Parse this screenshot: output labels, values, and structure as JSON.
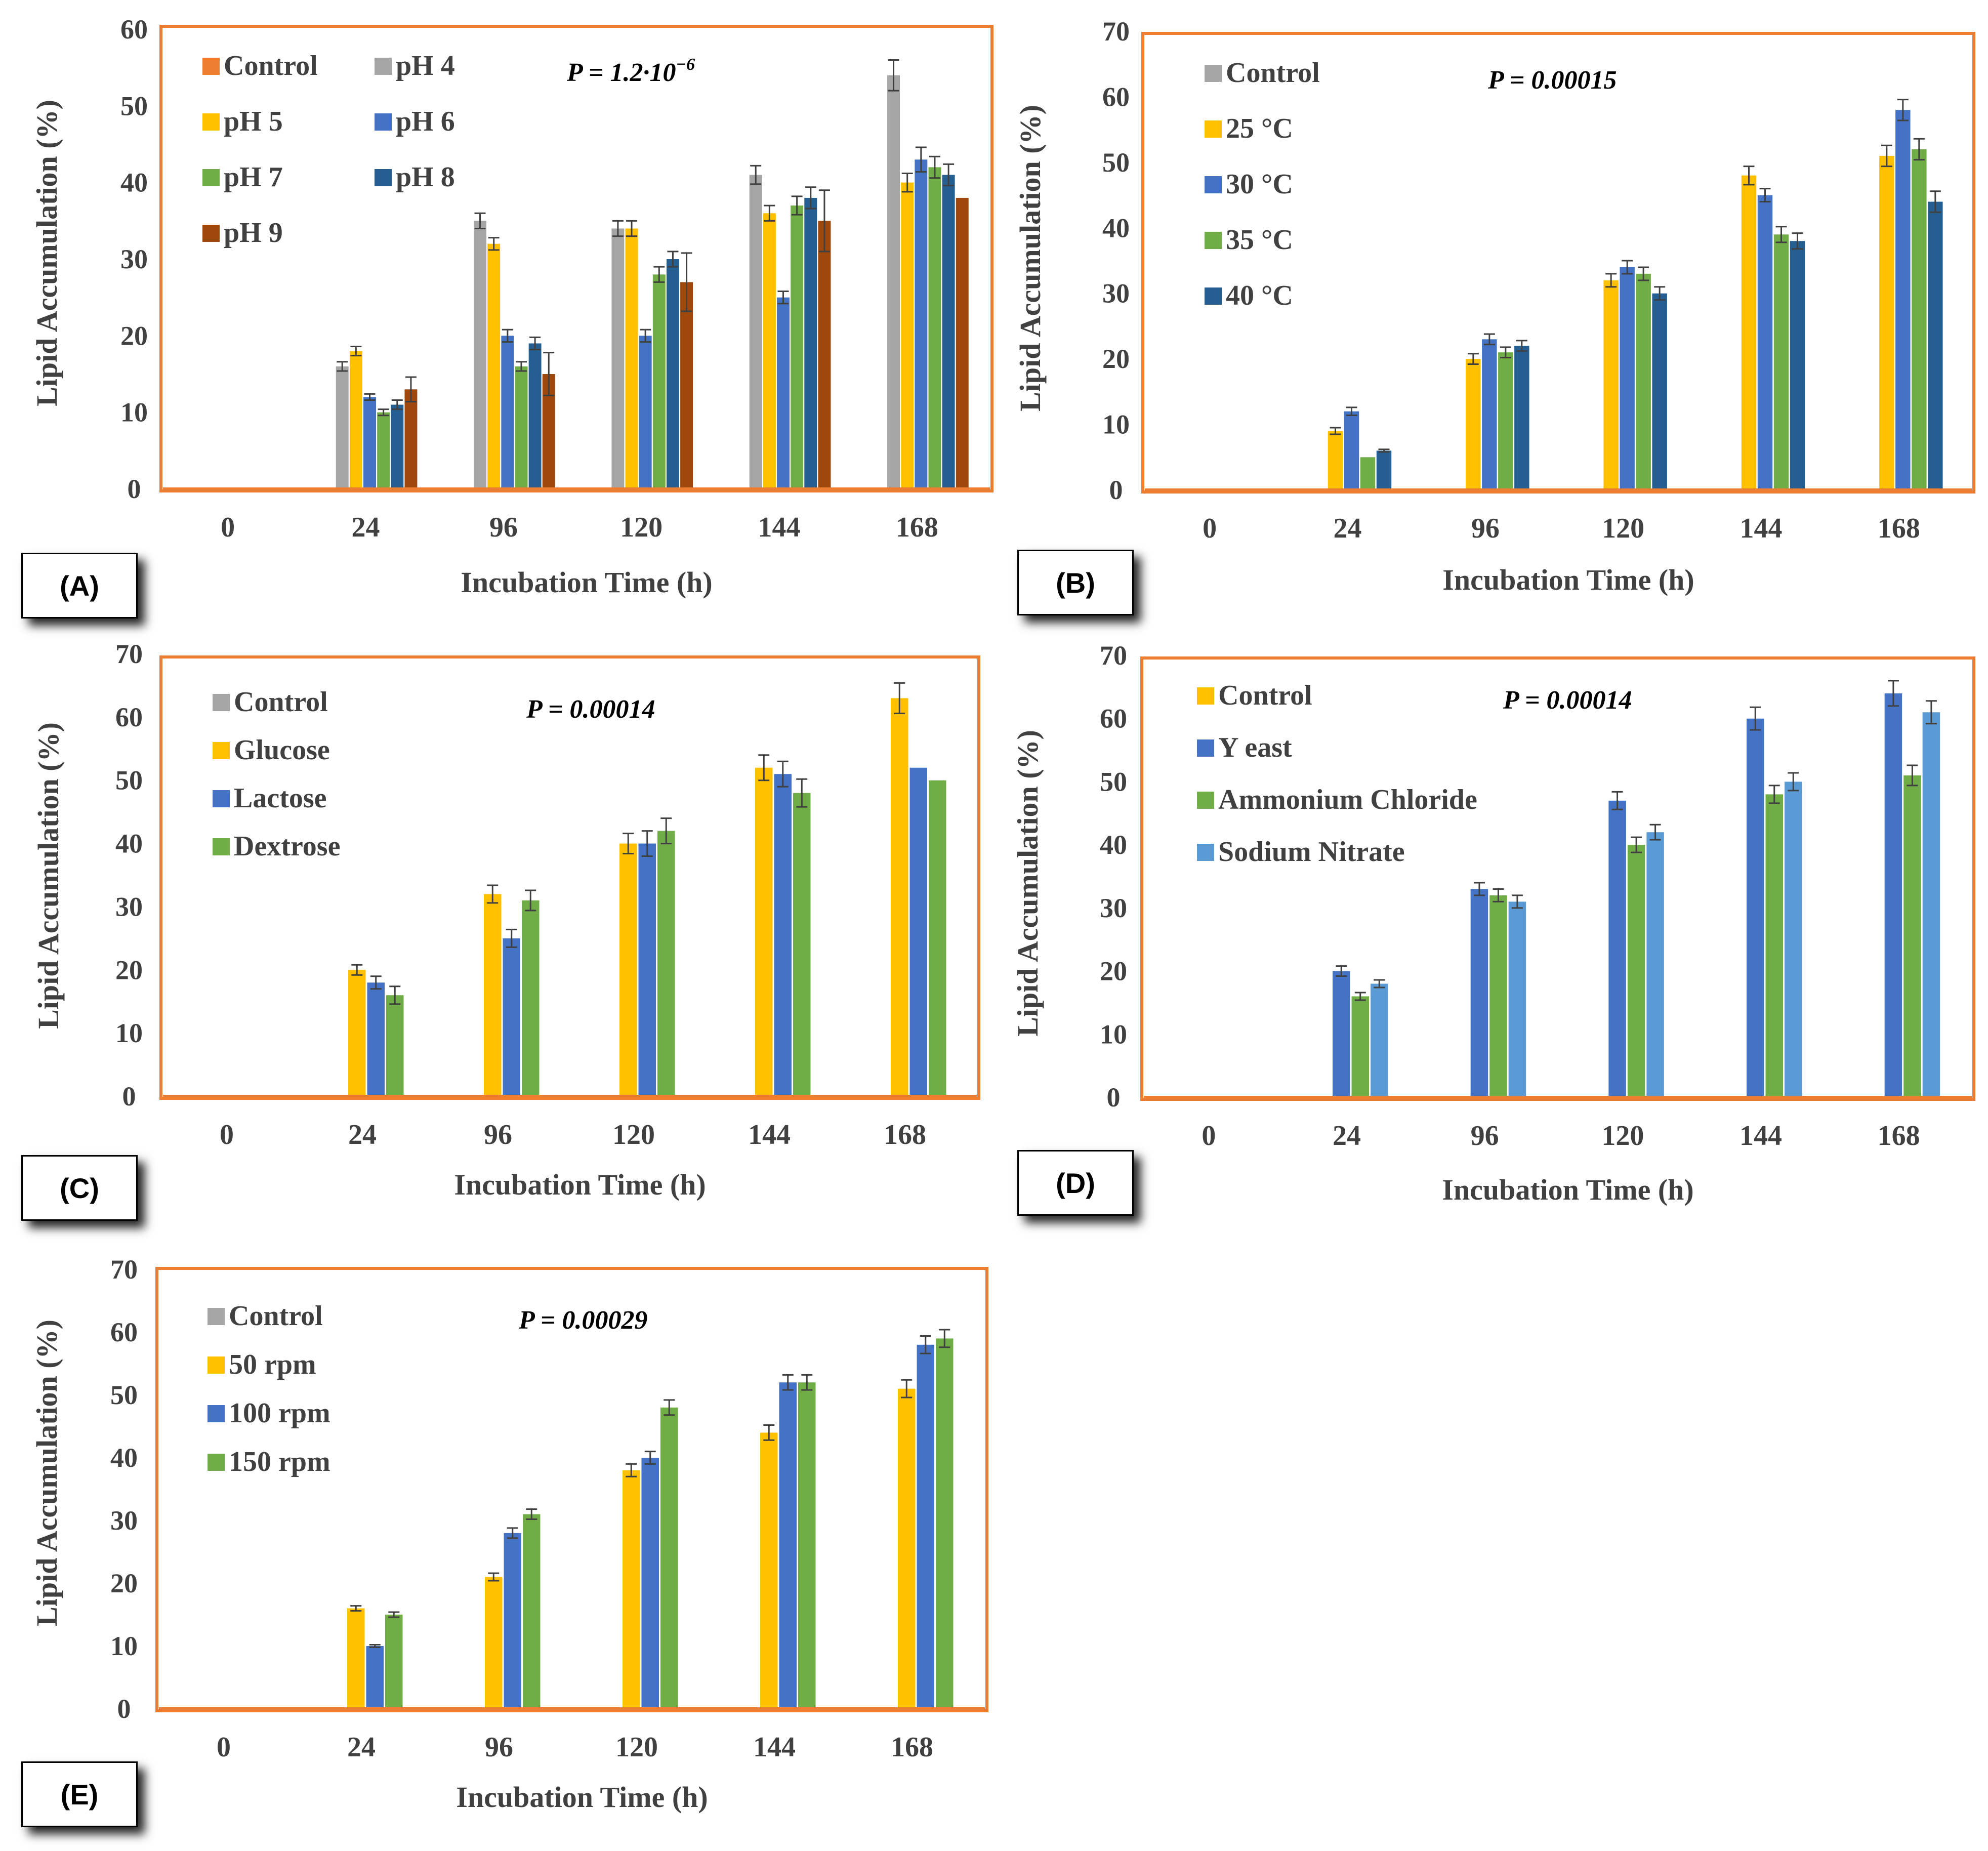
{
  "colors": {
    "frame": "#ED7D31",
    "axis": "#ED7D31",
    "text": "#404040",
    "Control": "#ED7D31",
    "Control_gray": "#A5A5A5",
    "yellow": "#FFC000",
    "blue": "#4472C4",
    "blue_mid": "#2E75B6",
    "green": "#70AD47",
    "dark_blue": "#255E91",
    "brown": "#C55A11",
    "light_blue": "#5B9BD5",
    "error_bar": "#404040"
  },
  "chart_data": [
    {
      "panel": "(A)",
      "type": "bar",
      "p_value": "P = 1.2·10",
      "p_exponent": "−6",
      "xlabel": "Incubation  Time (h)",
      "ylabel": "Lipid Accumulation  (%)",
      "ylim": [
        0,
        60
      ],
      "yticks": [
        "0",
        "10",
        "20",
        "30",
        "40",
        "50",
        "60"
      ],
      "categories": [
        "0",
        "24",
        "96",
        "120",
        "144",
        "168"
      ],
      "legend_columns": 2,
      "series": [
        {
          "name": "Control",
          "color": "#ED7D31",
          "values": [
            0,
            0,
            0,
            0,
            0,
            0
          ],
          "errors": [
            0,
            0,
            0,
            0,
            0,
            0
          ]
        },
        {
          "name": "pH 4",
          "color": "#A5A5A5",
          "values": [
            0,
            16,
            35,
            34,
            41,
            54
          ],
          "errors": [
            0,
            0.6,
            1,
            1,
            1.2,
            2
          ]
        },
        {
          "name": "pH 5",
          "color": "#FFC000",
          "values": [
            0,
            18,
            32,
            34,
            36,
            40
          ],
          "errors": [
            0,
            0.6,
            0.8,
            1,
            1,
            1.2
          ]
        },
        {
          "name": "pH 6",
          "color": "#4472C4",
          "values": [
            0,
            12,
            20,
            20,
            25,
            43
          ],
          "errors": [
            0,
            0.4,
            0.8,
            0.8,
            0.8,
            1.6
          ]
        },
        {
          "name": "pH 7",
          "color": "#70AD47",
          "values": [
            0,
            10,
            16,
            28,
            37,
            42
          ],
          "errors": [
            0,
            0.4,
            0.6,
            1,
            1.2,
            1.4
          ]
        },
        {
          "name": "pH 8",
          "color": "#255E91",
          "values": [
            0,
            11,
            19,
            30,
            38,
            41
          ],
          "errors": [
            0,
            0.6,
            0.8,
            1,
            1.4,
            1.4
          ]
        },
        {
          "name": "pH 9",
          "color": "#9E480E",
          "values": [
            0,
            13,
            15,
            27,
            35,
            38
          ],
          "errors": [
            0,
            1.6,
            2.8,
            3.8,
            4,
            0
          ]
        }
      ]
    },
    {
      "panel": "(B)",
      "type": "bar",
      "p_value": "P = 0.00015",
      "xlabel": "Incubation  Time (h)",
      "ylabel": "Lipid Accumulation  (%)",
      "ylim": [
        0,
        70
      ],
      "yticks": [
        "0",
        "10",
        "20",
        "30",
        "40",
        "50",
        "60",
        "70"
      ],
      "categories": [
        "0",
        "24",
        "96",
        "120",
        "144",
        "168"
      ],
      "legend_columns": 1,
      "series": [
        {
          "name": "Control",
          "color": "#A5A5A5",
          "values": [
            0,
            0,
            0,
            0,
            0,
            0
          ],
          "errors": [
            0,
            0,
            0,
            0,
            0,
            0
          ]
        },
        {
          "name": "25 °C",
          "color": "#FFC000",
          "values": [
            0,
            9,
            20,
            32,
            48,
            51
          ],
          "errors": [
            0,
            0.5,
            0.8,
            1,
            1.4,
            1.6
          ]
        },
        {
          "name": "30 °C",
          "color": "#4472C4",
          "values": [
            0,
            12,
            23,
            34,
            45,
            58
          ],
          "errors": [
            0,
            0.6,
            0.8,
            1,
            1,
            1.6
          ]
        },
        {
          "name": "35 °C",
          "color": "#70AD47",
          "values": [
            0,
            5,
            21,
            33,
            39,
            52
          ],
          "errors": [
            0,
            0,
            0.8,
            1,
            1.2,
            1.6
          ]
        },
        {
          "name": "40 °C",
          "color": "#255E91",
          "values": [
            0,
            6,
            22,
            30,
            38,
            44
          ],
          "errors": [
            0,
            0.2,
            0.8,
            1,
            1.2,
            1.6
          ]
        }
      ]
    },
    {
      "panel": "(C)",
      "type": "bar",
      "p_value": "P = 0.00014",
      "xlabel": "Incubation  Time (h)",
      "ylabel": "Lipid Accumulation  (%)",
      "ylim": [
        0,
        70
      ],
      "yticks": [
        "0",
        "10",
        "20",
        "30",
        "40",
        "50",
        "60",
        "70"
      ],
      "categories": [
        "0",
        "24",
        "96",
        "120",
        "144",
        "168"
      ],
      "legend_columns": 1,
      "series": [
        {
          "name": "Control",
          "color": "#A5A5A5",
          "values": [
            0,
            0,
            0,
            0,
            0,
            0
          ],
          "errors": [
            0,
            0,
            0,
            0,
            0,
            0
          ]
        },
        {
          "name": "Glucose",
          "color": "#FFC000",
          "values": [
            0,
            20,
            32,
            40,
            52,
            63
          ],
          "errors": [
            0,
            0.8,
            1.4,
            1.6,
            2,
            2.4
          ]
        },
        {
          "name": "Lactose",
          "color": "#4472C4",
          "values": [
            0,
            18,
            25,
            40,
            51,
            52
          ],
          "errors": [
            0,
            1,
            1.4,
            2,
            2,
            0
          ]
        },
        {
          "name": "Dextrose",
          "color": "#70AD47",
          "values": [
            0,
            16,
            31,
            42,
            48,
            50
          ],
          "errors": [
            0,
            1.4,
            1.6,
            2,
            2.2,
            0
          ]
        }
      ]
    },
    {
      "panel": "(D)",
      "type": "bar",
      "p_value": "P = 0.00014",
      "xlabel": "Incubation  Time (h)",
      "ylabel": "Lipid Accumulation  (%)",
      "ylim": [
        0,
        70
      ],
      "yticks": [
        "0",
        "10",
        "20",
        "30",
        "40",
        "50",
        "60",
        "70"
      ],
      "categories": [
        "0",
        "24",
        "96",
        "120",
        "144",
        "168"
      ],
      "legend_columns": 1,
      "series": [
        {
          "name": "Control",
          "color": "#FFC000",
          "values": [
            0,
            0,
            0,
            0,
            0,
            0
          ],
          "errors": [
            0,
            0,
            0,
            0,
            0,
            0
          ]
        },
        {
          "name": "Y east",
          "color": "#4472C4",
          "values": [
            0,
            20,
            33,
            47,
            60,
            64
          ],
          "errors": [
            0,
            0.8,
            1,
            1.4,
            1.8,
            2
          ]
        },
        {
          "name": "Ammonium Chloride",
          "color": "#70AD47",
          "values": [
            0,
            16,
            32,
            40,
            48,
            51
          ],
          "errors": [
            0,
            0.6,
            1,
            1.2,
            1.4,
            1.6
          ]
        },
        {
          "name": "Sodium Nitrate",
          "color": "#5B9BD5",
          "values": [
            0,
            18,
            31,
            42,
            50,
            61
          ],
          "errors": [
            0,
            0.6,
            1,
            1.2,
            1.4,
            1.8
          ]
        }
      ]
    },
    {
      "panel": "(E)",
      "type": "bar",
      "p_value": "P = 0.00029",
      "xlabel": "Incubation  Time (h)",
      "ylabel": "Lipid Accumulation  (%)",
      "ylim": [
        0,
        70
      ],
      "yticks": [
        "0",
        "10",
        "20",
        "30",
        "40",
        "50",
        "60",
        "70"
      ],
      "categories": [
        "0",
        "24",
        "96",
        "120",
        "144",
        "168"
      ],
      "legend_columns": 1,
      "series": [
        {
          "name": "Control",
          "color": "#A5A5A5",
          "values": [
            0,
            0,
            0,
            0,
            0,
            0
          ],
          "errors": [
            0,
            0,
            0,
            0,
            0,
            0
          ]
        },
        {
          "name": "50 rpm",
          "color": "#FFC000",
          "values": [
            0,
            16,
            21,
            38,
            44,
            51
          ],
          "errors": [
            0,
            0.4,
            0.6,
            1,
            1.2,
            1.4
          ]
        },
        {
          "name": "100 rpm",
          "color": "#4472C4",
          "values": [
            0,
            10,
            28,
            40,
            52,
            58
          ],
          "errors": [
            0,
            0.2,
            0.8,
            1,
            1.2,
            1.4
          ]
        },
        {
          "name": "150 rpm",
          "color": "#70AD47",
          "values": [
            0,
            15,
            31,
            48,
            52,
            59
          ],
          "errors": [
            0,
            0.4,
            0.8,
            1.2,
            1.2,
            1.4
          ]
        }
      ]
    }
  ]
}
